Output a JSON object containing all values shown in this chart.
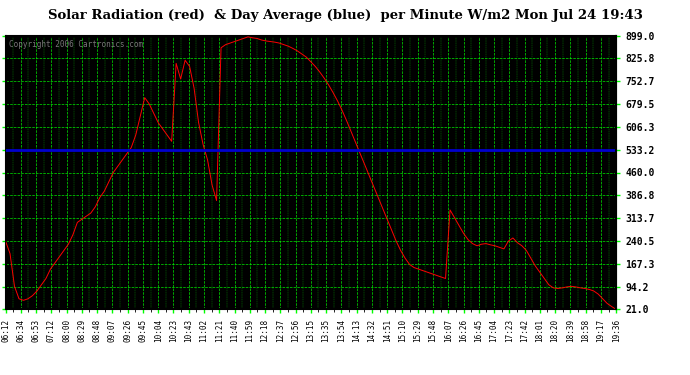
{
  "title": "Solar Radiation (red)  & Day Average (blue)  per Minute W/m2 Mon Jul 24 19:43",
  "copyright": "Copyright 2006 Cartronics.com",
  "yticks": [
    21.0,
    94.2,
    167.3,
    240.5,
    313.7,
    386.8,
    460.0,
    533.2,
    606.3,
    679.5,
    752.7,
    825.8,
    899.0
  ],
  "ymin": 21.0,
  "ymax": 899.0,
  "day_average": 533.2,
  "bg_color": "#000000",
  "outer_bg": "#ffffff",
  "grid_color": "#00ff00",
  "line_color": "#ff0000",
  "avg_line_color": "#0000cc",
  "title_color": "#000000",
  "xtick_labels": [
    "06:12",
    "06:34",
    "06:53",
    "07:12",
    "08:00",
    "08:29",
    "08:48",
    "09:07",
    "09:26",
    "09:45",
    "10:04",
    "10:23",
    "10:43",
    "11:02",
    "11:21",
    "11:40",
    "11:59",
    "12:18",
    "12:37",
    "12:56",
    "13:15",
    "13:35",
    "13:54",
    "14:13",
    "14:32",
    "14:51",
    "15:10",
    "15:29",
    "15:48",
    "16:07",
    "16:26",
    "16:45",
    "17:04",
    "17:23",
    "17:42",
    "18:01",
    "18:20",
    "18:39",
    "18:58",
    "19:17",
    "19:36"
  ],
  "solar_y": [
    240,
    200,
    95,
    55,
    50,
    55,
    65,
    80,
    100,
    120,
    150,
    170,
    190,
    210,
    230,
    260,
    300,
    310,
    320,
    330,
    350,
    380,
    400,
    430,
    460,
    480,
    500,
    520,
    540,
    580,
    640,
    700,
    680,
    650,
    620,
    600,
    580,
    560,
    810,
    760,
    820,
    800,
    730,
    620,
    550,
    500,
    420,
    370,
    860,
    870,
    875,
    880,
    885,
    890,
    895,
    892,
    890,
    885,
    882,
    880,
    878,
    875,
    870,
    865,
    858,
    850,
    840,
    830,
    815,
    800,
    782,
    762,
    740,
    715,
    688,
    658,
    625,
    590,
    555,
    520,
    485,
    450,
    415,
    380,
    345,
    310,
    275,
    240,
    210,
    185,
    165,
    155,
    150,
    145,
    140,
    135,
    130,
    125,
    120,
    340,
    315,
    290,
    265,
    245,
    232,
    225,
    230,
    232,
    228,
    225,
    220,
    215,
    240,
    250,
    235,
    225,
    210,
    185,
    160,
    140,
    120,
    100,
    90,
    88,
    90,
    93,
    95,
    93,
    90,
    88,
    85,
    80,
    70,
    55,
    40,
    30,
    21
  ]
}
